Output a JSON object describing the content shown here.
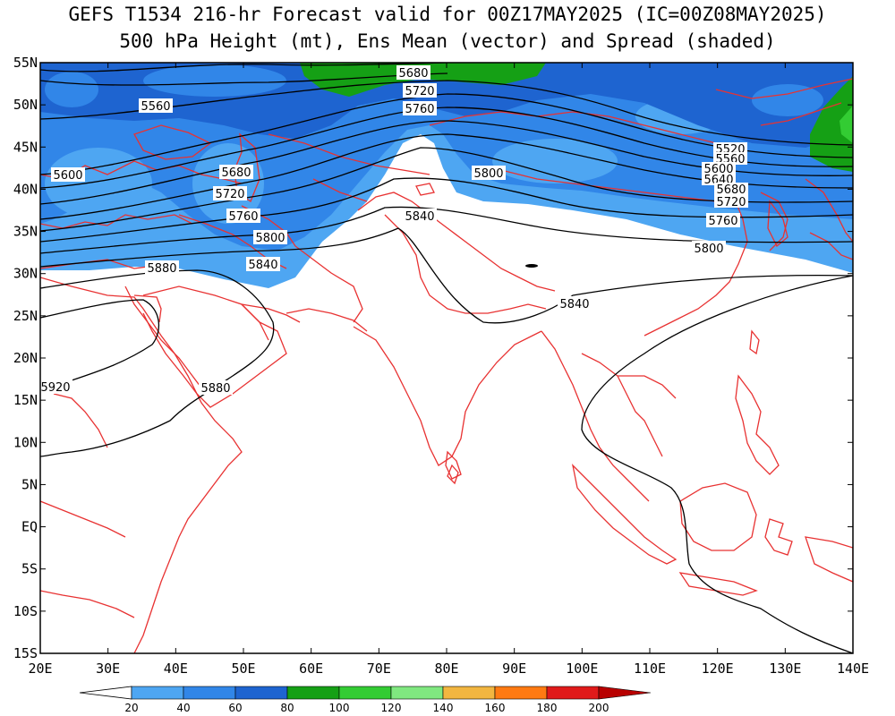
{
  "title": {
    "line1": "GEFS T1534 216-hr Forecast valid for 00Z17MAY2025 (IC=00Z08MAY2025)",
    "line2": "500 hPa Height (mt), Ens Mean (vector) and Spread (shaded)"
  },
  "axes": {
    "lat_labels": [
      "55N",
      "50N",
      "45N",
      "40N",
      "35N",
      "30N",
      "25N",
      "20N",
      "15N",
      "10N",
      "5N",
      "EQ",
      "5S",
      "10S",
      "15S"
    ],
    "lon_labels": [
      "20E",
      "30E",
      "40E",
      "50E",
      "60E",
      "70E",
      "80E",
      "90E",
      "100E",
      "110E",
      "120E",
      "130E",
      "140E"
    ]
  },
  "colorbar": {
    "labels": [
      "20",
      "40",
      "60",
      "80",
      "100",
      "120",
      "140",
      "160",
      "180",
      "200"
    ],
    "colors": [
      "#4ea6f2",
      "#3186e8",
      "#1e64d0",
      "#15a015",
      "#33cc33",
      "#80e880",
      "#f2b640",
      "#ff7a12",
      "#e01a1a",
      "#b80000"
    ]
  },
  "contour_labels": [
    {
      "text": "5560"
    },
    {
      "text": "5600"
    },
    {
      "text": "5680"
    },
    {
      "text": "5720"
    },
    {
      "text": "5760"
    },
    {
      "text": "5800"
    },
    {
      "text": "5840"
    },
    {
      "text": "5880"
    },
    {
      "text": "5920"
    },
    {
      "text": "5680"
    },
    {
      "text": "5720"
    },
    {
      "text": "5760"
    },
    {
      "text": "5800"
    },
    {
      "text": "5840"
    },
    {
      "text": "5520"
    },
    {
      "text": "5560"
    },
    {
      "text": "5600"
    },
    {
      "text": "5640"
    },
    {
      "text": "5680"
    },
    {
      "text": "5720"
    },
    {
      "text": "5760"
    },
    {
      "text": "5800"
    },
    {
      "text": "5840"
    },
    {
      "text": "5880"
    }
  ]
}
